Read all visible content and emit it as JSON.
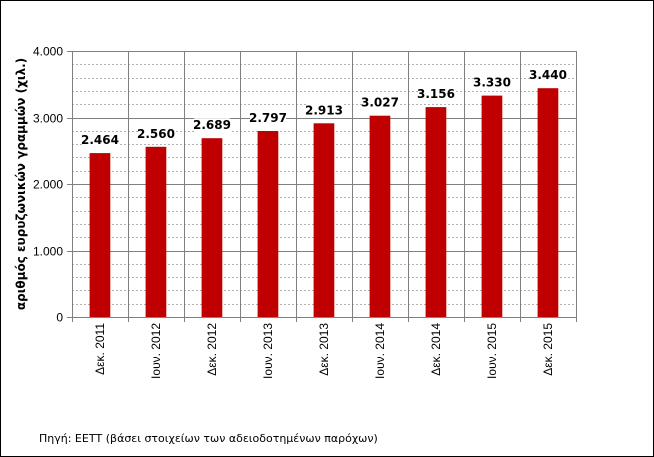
{
  "chart_data": {
    "type": "bar",
    "ylabel": "αριθμός ευρυζωνικών γραμμών (χιλ.)",
    "xlabel": "",
    "categories": [
      "Δεκ. 2011",
      "Ιουν. 2012",
      "Δεκ. 2012",
      "Ιουν. 2013",
      "Δεκ. 2013",
      "Ιουν. 2014",
      "Δεκ. 2014",
      "Ιουν. 2015",
      "Δεκ. 2015"
    ],
    "values": [
      2464,
      2560,
      2689,
      2797,
      2913,
      3027,
      3156,
      3330,
      3440
    ],
    "data_labels": [
      "2.464",
      "2.560",
      "2.689",
      "2.797",
      "2.913",
      "3.027",
      "3.156",
      "3.330",
      "3.440"
    ],
    "ylim": [
      0,
      4000
    ],
    "yticks": [
      0,
      1000,
      2000,
      3000,
      4000
    ],
    "ytick_labels": [
      "0",
      "1.000",
      "2.000",
      "3.000",
      "4.000"
    ],
    "minor_gridlines": true,
    "grid": true,
    "bar_color": "#c00000"
  },
  "source_note": "Πηγή: ΕΕΤΤ (βάσει στοιχείων των αδειοδοτημένων παρόχων)"
}
